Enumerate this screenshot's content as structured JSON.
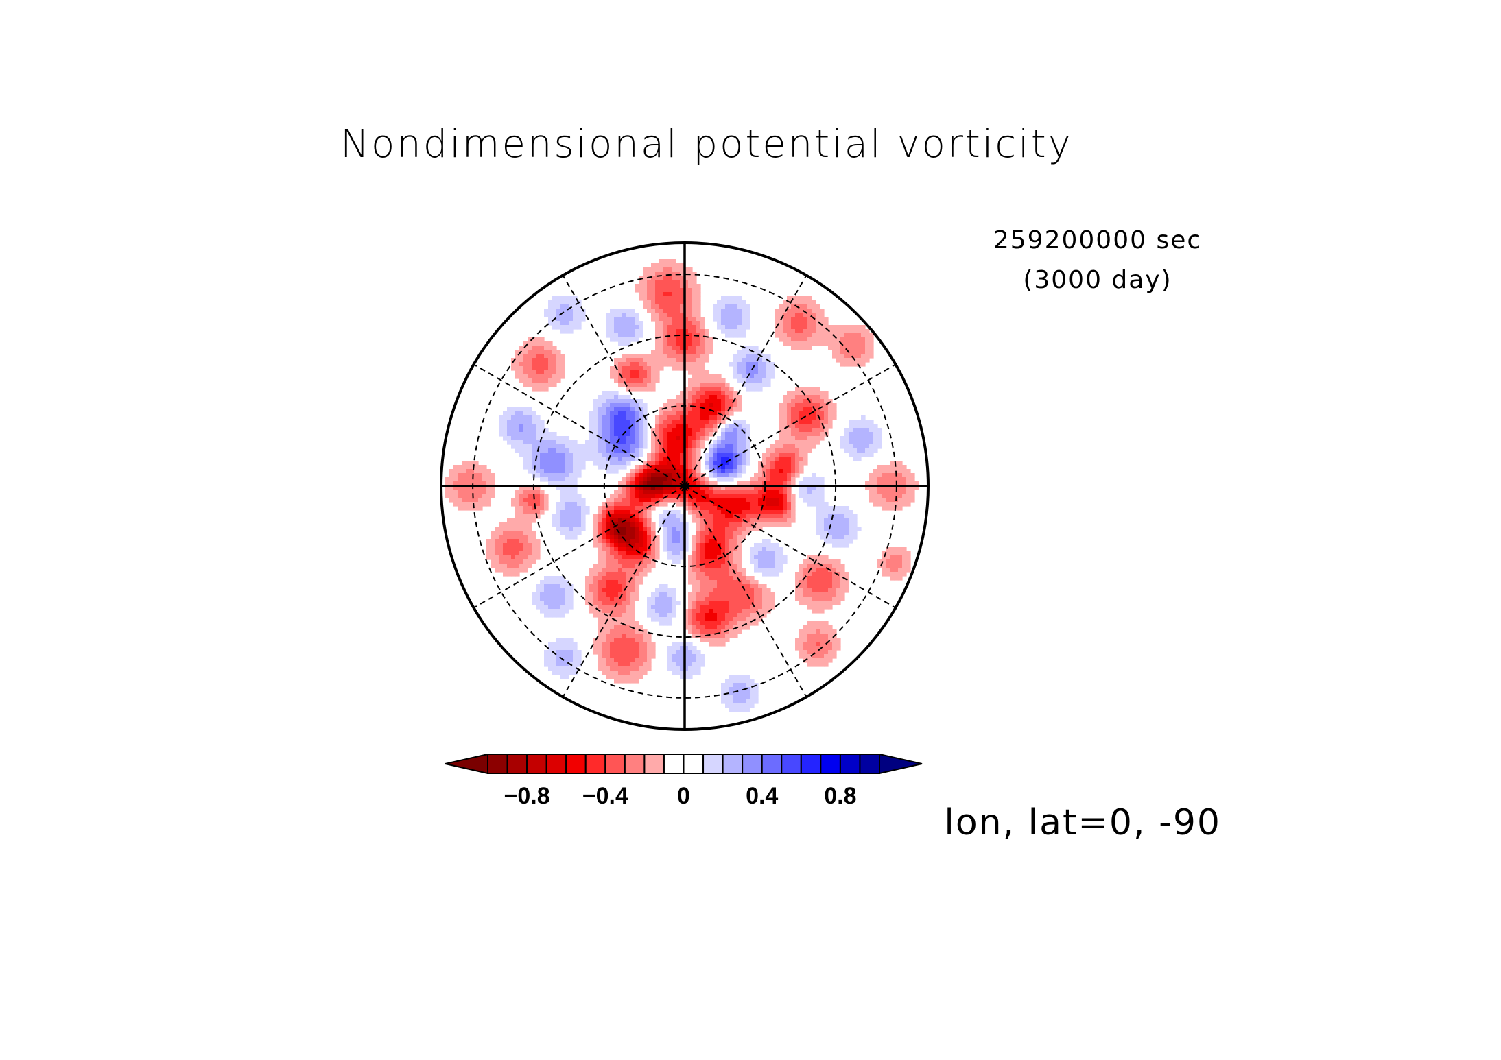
{
  "chart_data": {
    "type": "heatmap",
    "projection": "polar-stereographic",
    "title": "Nondimensional potential vorticity",
    "time_seconds_label": "259200000 sec",
    "time_days_label": "(3000 day)",
    "projection_label": "lon, lat=0, -90",
    "colorbar": {
      "orientation": "horizontal",
      "extend": "both",
      "levels": [
        -1.0,
        -0.9,
        -0.8,
        -0.7,
        -0.6,
        -0.5,
        -0.4,
        -0.3,
        -0.2,
        -0.1,
        0,
        0.1,
        0.2,
        0.3,
        0.4,
        0.5,
        0.6,
        0.7,
        0.8,
        0.9,
        1.0
      ],
      "tick_values": [
        -0.8,
        -0.4,
        0,
        0.4,
        0.8
      ],
      "tick_labels": [
        "−0.8",
        "−0.4",
        "0",
        "0.4",
        "0.8"
      ],
      "colors": [
        "#7a0000",
        "#8c0000",
        "#a80000",
        "#c40000",
        "#dc0000",
        "#f20000",
        "#ff2a2a",
        "#ff5555",
        "#ff8080",
        "#ffaaaa",
        "#ffffff",
        "#ffffff",
        "#d6d6ff",
        "#b4b4ff",
        "#9090ff",
        "#6c6cff",
        "#4848ff",
        "#2424ff",
        "#0000f0",
        "#0000c8",
        "#0000a0",
        "#000080"
      ],
      "under_color": "#7a0000",
      "over_color": "#000080"
    },
    "grid": {
      "latitude_circles": true,
      "longitude_spokes_deg": 30,
      "solid_axes": true
    },
    "blobs": [
      {
        "r": 0.05,
        "a": 40,
        "s": 0.07,
        "v": -0.6
      },
      {
        "r": 0.08,
        "a": 200,
        "s": 0.06,
        "v": -0.55
      },
      {
        "r": 0.12,
        "a": 110,
        "s": 0.07,
        "v": 0.4
      },
      {
        "r": 0.18,
        "a": 330,
        "s": 0.06,
        "v": 0.7
      },
      {
        "r": 0.2,
        "a": 260,
        "s": 0.08,
        "v": -0.6
      },
      {
        "r": 0.16,
        "a": 180,
        "s": 0.06,
        "v": -0.7
      },
      {
        "r": 0.22,
        "a": 20,
        "s": 0.07,
        "v": -0.55
      },
      {
        "r": 0.28,
        "a": 70,
        "s": 0.08,
        "v": -0.6
      },
      {
        "r": 0.25,
        "a": 95,
        "s": 0.06,
        "v": 0.45
      },
      {
        "r": 0.3,
        "a": 130,
        "s": 0.07,
        "v": -0.6
      },
      {
        "r": 0.32,
        "a": 150,
        "s": 0.06,
        "v": -0.7
      },
      {
        "r": 0.3,
        "a": 215,
        "s": 0.08,
        "v": 0.45
      },
      {
        "r": 0.4,
        "a": 230,
        "s": 0.07,
        "v": 0.4
      },
      {
        "r": 0.35,
        "a": 290,
        "s": 0.07,
        "v": -0.6
      },
      {
        "r": 0.3,
        "a": 310,
        "s": 0.05,
        "v": 0.4
      },
      {
        "r": 0.42,
        "a": 350,
        "s": 0.06,
        "v": -0.55
      },
      {
        "r": 0.38,
        "a": 10,
        "s": 0.06,
        "v": -0.6
      },
      {
        "r": 0.45,
        "a": 45,
        "s": 0.07,
        "v": 0.35
      },
      {
        "r": 0.5,
        "a": 60,
        "s": 0.08,
        "v": -0.4
      },
      {
        "r": 0.55,
        "a": 80,
        "s": 0.07,
        "v": -0.5
      },
      {
        "r": 0.5,
        "a": 100,
        "s": 0.06,
        "v": 0.3
      },
      {
        "r": 0.52,
        "a": 125,
        "s": 0.07,
        "v": -0.45
      },
      {
        "r": 0.48,
        "a": 165,
        "s": 0.06,
        "v": 0.3
      },
      {
        "r": 0.55,
        "a": 190,
        "s": 0.07,
        "v": 0.4
      },
      {
        "r": 0.5,
        "a": 245,
        "s": 0.06,
        "v": -0.45
      },
      {
        "r": 0.6,
        "a": 270,
        "s": 0.07,
        "v": -0.45
      },
      {
        "r": 0.55,
        "a": 300,
        "s": 0.06,
        "v": 0.35
      },
      {
        "r": 0.58,
        "a": 330,
        "s": 0.07,
        "v": -0.45
      },
      {
        "r": 0.48,
        "a": 0,
        "s": 0.06,
        "v": 0.35
      },
      {
        "r": 0.65,
        "a": 15,
        "s": 0.06,
        "v": 0.3
      },
      {
        "r": 0.68,
        "a": 35,
        "s": 0.07,
        "v": -0.4
      },
      {
        "r": 0.7,
        "a": 90,
        "s": 0.06,
        "v": 0.3
      },
      {
        "r": 0.72,
        "a": 110,
        "s": 0.08,
        "v": -0.4
      },
      {
        "r": 0.7,
        "a": 140,
        "s": 0.06,
        "v": 0.3
      },
      {
        "r": 0.75,
        "a": 160,
        "s": 0.07,
        "v": -0.35
      },
      {
        "r": 0.72,
        "a": 200,
        "s": 0.06,
        "v": 0.3
      },
      {
        "r": 0.78,
        "a": 220,
        "s": 0.07,
        "v": -0.35
      },
      {
        "r": 0.7,
        "a": 250,
        "s": 0.06,
        "v": 0.3
      },
      {
        "r": 0.8,
        "a": 265,
        "s": 0.08,
        "v": -0.4
      },
      {
        "r": 0.72,
        "a": 285,
        "s": 0.06,
        "v": 0.3
      },
      {
        "r": 0.82,
        "a": 305,
        "s": 0.07,
        "v": -0.35
      },
      {
        "r": 0.75,
        "a": 345,
        "s": 0.06,
        "v": 0.3
      },
      {
        "r": 0.85,
        "a": 0,
        "s": 0.07,
        "v": -0.3
      },
      {
        "r": 0.85,
        "a": 50,
        "s": 0.06,
        "v": -0.3
      },
      {
        "r": 0.88,
        "a": 75,
        "s": 0.06,
        "v": 0.25
      },
      {
        "r": 0.86,
        "a": 125,
        "s": 0.06,
        "v": 0.25
      },
      {
        "r": 0.88,
        "a": 180,
        "s": 0.07,
        "v": -0.3
      },
      {
        "r": 0.86,
        "a": 235,
        "s": 0.06,
        "v": 0.25
      },
      {
        "r": 0.9,
        "a": 320,
        "s": 0.06,
        "v": -0.3
      },
      {
        "r": 0.92,
        "a": 20,
        "s": 0.05,
        "v": -0.25
      },
      {
        "r": 0.62,
        "a": 175,
        "s": 0.05,
        "v": -0.4
      }
    ]
  }
}
